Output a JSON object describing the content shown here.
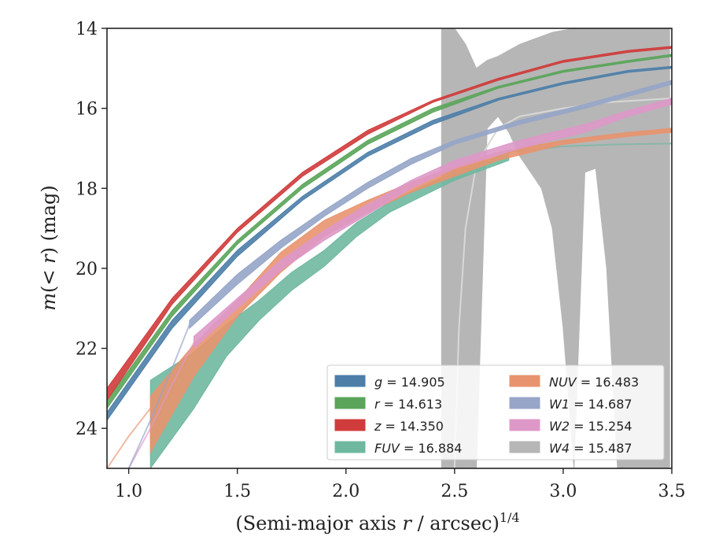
{
  "chart_data": {
    "type": "area",
    "xlabel": "(Semi-major axis r / arcsec)",
    "xlabel_parts": {
      "pre": "(Semi-major axis ",
      "var": "r",
      "post": " / arcsec)",
      "sup": "1/4"
    },
    "ylabel": "m(< r) (mag)",
    "ylabel_parts": {
      "var": "m",
      "mid": "(< ",
      "var2": "r",
      "post": ") (mag)"
    },
    "xlim": [
      0.9,
      3.5
    ],
    "ylim": [
      25.0,
      14.0
    ],
    "y_inverted": true,
    "xticks": [
      "1.0",
      "1.5",
      "2.0",
      "2.5",
      "3.0",
      "3.5"
    ],
    "xtick_values": [
      1.0,
      1.5,
      2.0,
      2.5,
      3.0,
      3.5
    ],
    "yticks": [
      "14",
      "16",
      "18",
      "20",
      "22",
      "24"
    ],
    "ytick_values": [
      14,
      16,
      18,
      20,
      22,
      24
    ],
    "grid": false,
    "legend_position": "lower-right",
    "series": [
      {
        "name": "g",
        "value": "14.905",
        "color": "#4c7ea8",
        "x": [
          0.9,
          1.2,
          1.5,
          1.8,
          2.1,
          2.4,
          2.7,
          3.0,
          3.3,
          3.5
        ],
        "y_low": [
          23.8,
          21.5,
          19.7,
          18.3,
          17.2,
          16.4,
          15.8,
          15.4,
          15.1,
          15.0
        ],
        "y_high": [
          23.6,
          21.3,
          19.55,
          18.2,
          17.1,
          16.3,
          15.75,
          15.35,
          15.05,
          14.95
        ],
        "fit": true
      },
      {
        "name": "r",
        "value": "14.613",
        "color": "#5aa55a",
        "x": [
          0.9,
          1.2,
          1.5,
          1.8,
          2.1,
          2.4,
          2.7,
          3.0,
          3.3,
          3.5
        ],
        "y_low": [
          23.5,
          21.2,
          19.4,
          18.0,
          16.9,
          16.1,
          15.5,
          15.1,
          14.85,
          14.7
        ],
        "y_high": [
          23.3,
          21.05,
          19.3,
          17.9,
          16.8,
          16.0,
          15.45,
          15.05,
          14.8,
          14.65
        ],
        "fit": true
      },
      {
        "name": "z",
        "value": "14.350",
        "color": "#d03b3b",
        "x": [
          0.9,
          1.2,
          1.5,
          1.8,
          2.1,
          2.4,
          2.7,
          3.0,
          3.3,
          3.5
        ],
        "y_low": [
          23.3,
          20.9,
          19.1,
          17.7,
          16.65,
          15.85,
          15.3,
          14.85,
          14.6,
          14.5
        ],
        "y_high": [
          23.0,
          20.75,
          19.0,
          17.6,
          16.55,
          15.8,
          15.25,
          14.8,
          14.55,
          14.45
        ],
        "fit": true
      },
      {
        "name": "FUV",
        "value": "16.884",
        "color": "#6fb8a0",
        "x": [
          1.1,
          1.3,
          1.45,
          1.6,
          1.75,
          1.9,
          2.05,
          2.2,
          2.35,
          2.5,
          2.6,
          2.75
        ],
        "y_low": [
          25.0,
          23.5,
          22.2,
          21.3,
          20.55,
          19.95,
          19.2,
          18.6,
          18.2,
          17.8,
          17.6,
          17.3
        ],
        "y_high": [
          22.8,
          22.1,
          21.4,
          20.8,
          20.1,
          19.55,
          18.85,
          18.35,
          17.95,
          17.6,
          17.4,
          17.1
        ],
        "fit_x": [
          2.75,
          3.0,
          3.25,
          3.5
        ],
        "fit_y": [
          17.1,
          16.95,
          16.9,
          16.88
        ]
      },
      {
        "name": "NUV",
        "value": "16.483",
        "color": "#e8936e",
        "x": [
          1.1,
          1.3,
          1.5,
          1.7,
          1.9,
          2.1,
          2.3,
          2.5,
          2.7,
          3.0,
          3.3,
          3.5
        ],
        "y_low": [
          24.6,
          22.7,
          21.2,
          20.1,
          19.2,
          18.6,
          18.1,
          17.7,
          17.3,
          16.9,
          16.7,
          16.6
        ],
        "y_high": [
          23.2,
          21.9,
          20.8,
          19.6,
          18.8,
          18.3,
          17.85,
          17.45,
          17.1,
          16.8,
          16.6,
          16.5
        ],
        "fit_x": [
          0.9,
          1.0,
          1.1
        ],
        "fit_y": [
          25.0,
          24.2,
          23.5
        ]
      },
      {
        "name": "W1",
        "value": "14.687",
        "color": "#96a5c8",
        "x": [
          1.28,
          1.5,
          1.7,
          1.9,
          2.1,
          2.3,
          2.5,
          2.8,
          3.1,
          3.3,
          3.5
        ],
        "y_low": [
          21.5,
          20.4,
          19.5,
          18.7,
          18.0,
          17.4,
          16.9,
          16.4,
          16.0,
          15.7,
          15.4
        ],
        "y_high": [
          21.3,
          20.15,
          19.3,
          18.55,
          17.85,
          17.25,
          16.8,
          16.3,
          15.9,
          15.6,
          15.3
        ],
        "fit_x": [
          1.0,
          1.1,
          1.2,
          1.28
        ],
        "fit_y": [
          25.0,
          23.8,
          22.5,
          21.4
        ]
      },
      {
        "name": "W2",
        "value": "15.254",
        "color": "#de98c8",
        "x": [
          1.3,
          1.5,
          1.7,
          1.9,
          2.1,
          2.3,
          2.5,
          2.8,
          3.1,
          3.3,
          3.5
        ],
        "y_low": [
          22.0,
          21.0,
          20.05,
          19.3,
          18.65,
          18.0,
          17.5,
          17.0,
          16.6,
          16.2,
          15.9
        ],
        "y_high": [
          21.7,
          20.75,
          19.8,
          19.05,
          18.4,
          17.8,
          17.3,
          16.8,
          16.4,
          16.05,
          15.75
        ],
        "fit_x": [
          1.0,
          1.1,
          1.2,
          1.3
        ],
        "fit_y": [
          25.0,
          24.0,
          22.9,
          21.85
        ]
      },
      {
        "name": "W4",
        "value": "15.487",
        "color": "#b6b6b6",
        "x": [
          2.44,
          2.5,
          2.55,
          2.6,
          2.65,
          2.7,
          2.75,
          2.8,
          2.85,
          2.9,
          2.95,
          3.0,
          3.05,
          3.1,
          3.15,
          3.2,
          3.25,
          3.3,
          3.35,
          3.4,
          3.45,
          3.49
        ],
        "y_low": [
          25.0,
          25.0,
          25.0,
          25.0,
          16.5,
          16.2,
          16.6,
          17.2,
          17.6,
          18.0,
          19.0,
          21.5,
          25.0,
          17.6,
          17.5,
          20.0,
          25.0,
          25.0,
          25.0,
          25.0,
          25.0,
          25.0
        ],
        "y_high": [
          14.0,
          14.0,
          14.4,
          15.0,
          14.8,
          14.7,
          14.55,
          14.4,
          14.3,
          14.2,
          14.1,
          14.05,
          14.0,
          14.0,
          14.0,
          14.0,
          14.0,
          14.0,
          14.0,
          14.0,
          14.0,
          14.0
        ],
        "fit_x": [
          2.5,
          2.52,
          2.55,
          2.6,
          2.7,
          2.8,
          3.0,
          3.2,
          3.5
        ],
        "fit_y": [
          25.0,
          21.5,
          19.0,
          17.4,
          16.5,
          16.2,
          16.0,
          15.85,
          15.75
        ]
      }
    ],
    "legend": [
      {
        "label": "g",
        "value": "= 14.905"
      },
      {
        "label": "r",
        "value": "= 14.613"
      },
      {
        "label": "z",
        "value": "= 14.350"
      },
      {
        "label": "FUV",
        "value": "= 16.884"
      },
      {
        "label": "NUV",
        "value": "= 16.483"
      },
      {
        "label": "W1",
        "value": "= 14.687"
      },
      {
        "label": "W2",
        "value": "= 15.254"
      },
      {
        "label": "W4",
        "value": "= 15.487"
      }
    ]
  }
}
